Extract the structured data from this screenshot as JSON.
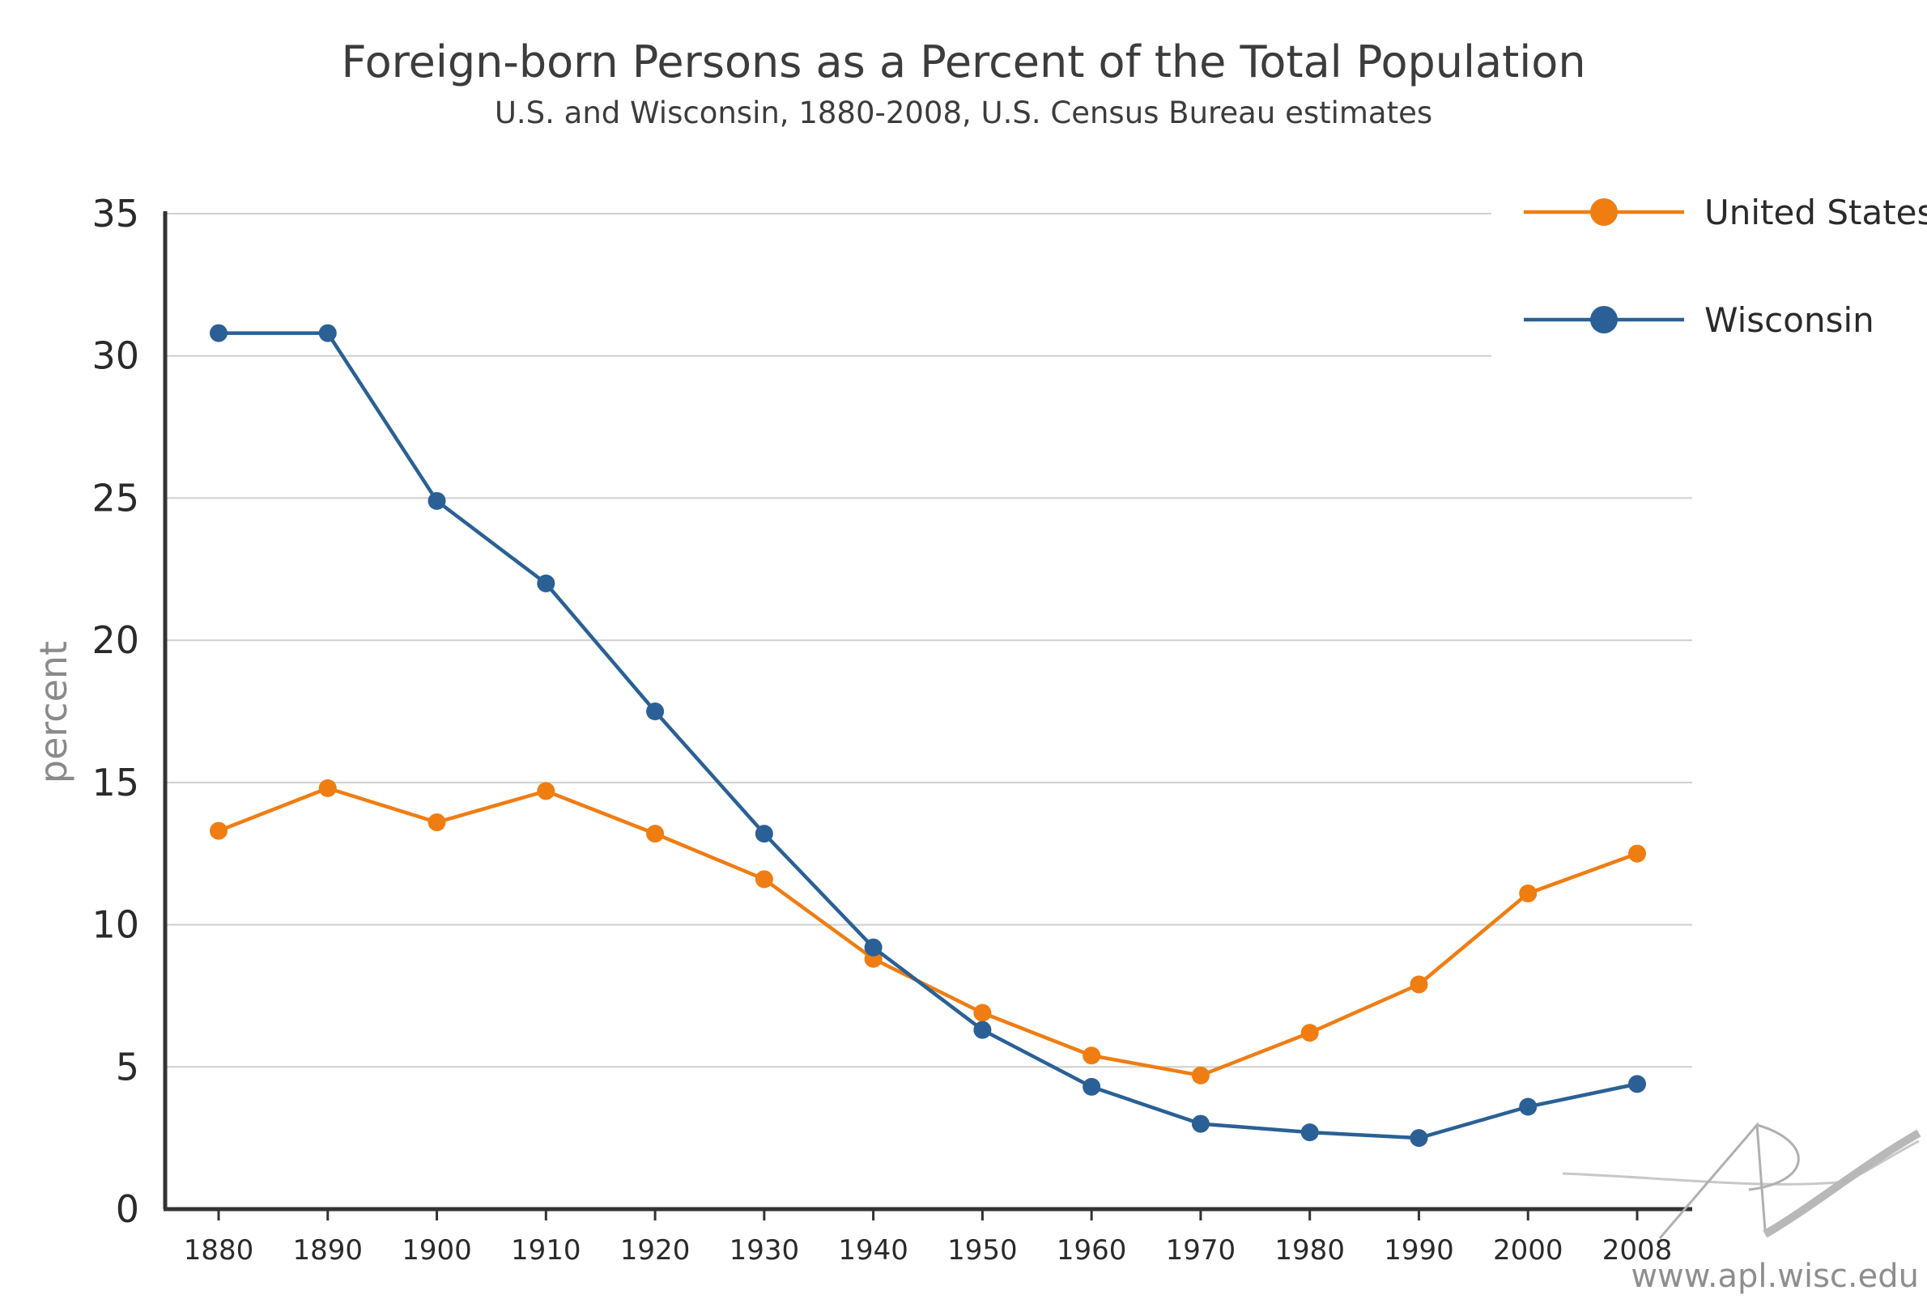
{
  "chart_data": {
    "type": "line",
    "title": "Foreign-born Persons as a Percent of the Total Population",
    "subtitle": "U.S. and Wisconsin, 1880-2008, U.S. Census Bureau estimates",
    "xlabel": "",
    "ylabel": "percent",
    "ylim": [
      0,
      35
    ],
    "yticks": [
      0,
      5,
      10,
      15,
      20,
      25,
      30,
      35
    ],
    "x": [
      "1880",
      "1890",
      "1900",
      "1910",
      "1920",
      "1930",
      "1940",
      "1950",
      "1960",
      "1970",
      "1980",
      "1990",
      "2000",
      "2008"
    ],
    "series": [
      {
        "name": "United States",
        "color": "#ef7d12",
        "values": [
          13.3,
          14.8,
          13.6,
          14.7,
          13.2,
          11.6,
          8.8,
          6.9,
          5.4,
          4.7,
          6.2,
          7.9,
          11.1,
          12.5
        ]
      },
      {
        "name": "Wisconsin",
        "color": "#2a6095",
        "values": [
          30.8,
          30.8,
          24.9,
          22.0,
          17.5,
          13.2,
          9.2,
          6.3,
          4.3,
          3.0,
          2.7,
          2.5,
          3.6,
          4.4
        ]
      }
    ],
    "grid": true,
    "legend_position": "top-right"
  },
  "watermark": "www.apl.wisc.edu"
}
